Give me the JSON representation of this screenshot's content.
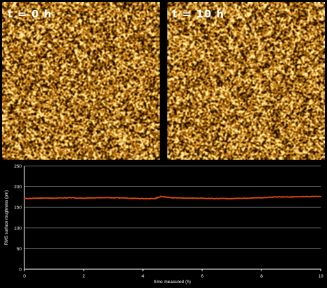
{
  "panels": {
    "left": {
      "label": "t = 0 h"
    },
    "right": {
      "label": "t = 10 h"
    }
  },
  "colors": {
    "background": "#000000",
    "series": "#e04a12",
    "grid": "#6a6a6a",
    "text": "#ffffff",
    "afm_dark": "#1a0d00",
    "afm_light": "#fff2a0"
  },
  "chart_data": {
    "type": "line",
    "title": "",
    "xlabel": "time measured (h)",
    "ylabel": "RMS surface roughness (pm)",
    "xlim": [
      0,
      10
    ],
    "ylim": [
      0,
      250
    ],
    "xticks": [
      0,
      2,
      4,
      6,
      8,
      10
    ],
    "yticks": [
      0,
      50,
      100,
      150,
      200,
      250
    ],
    "grid": true,
    "legend": "none",
    "series": [
      {
        "x": [
          0,
          0.5,
          1,
          1.5,
          2,
          2.5,
          3,
          3.5,
          4,
          4.4,
          4.6,
          5,
          5.5,
          6,
          6.5,
          7,
          7.5,
          8,
          8.5,
          9,
          9.5,
          10
        ],
        "values": [
          171,
          172,
          172,
          173,
          172,
          173,
          173,
          172,
          171,
          171,
          176,
          173,
          172,
          172,
          171,
          171,
          172,
          173,
          175,
          175,
          176,
          176
        ]
      }
    ]
  }
}
